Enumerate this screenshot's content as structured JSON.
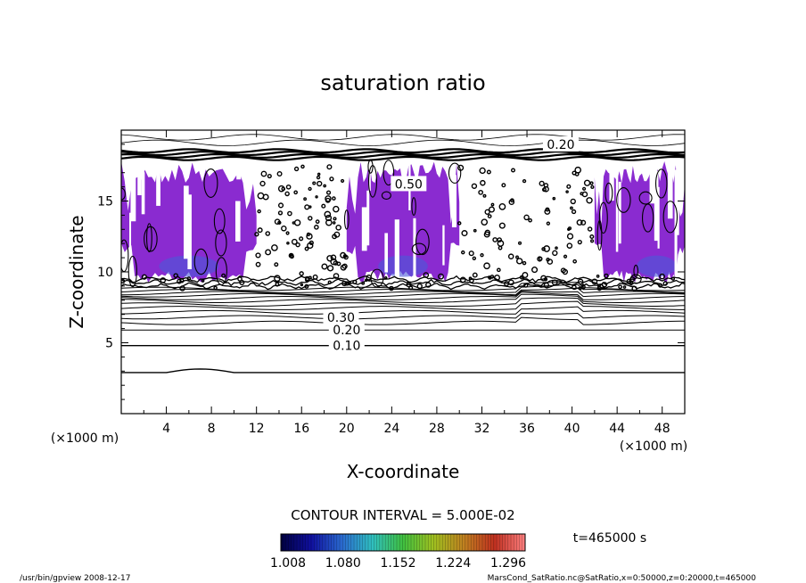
{
  "chart_data": {
    "type": "contour",
    "title": "saturation ratio",
    "xlabel": "X-coordinate",
    "ylabel": "Z-coordinate",
    "x_unit": "(×1000 m)",
    "y_unit": "(×1000 m)",
    "xlim": [
      0,
      50
    ],
    "ylim": [
      0,
      20
    ],
    "x_ticks": [
      4,
      8,
      12,
      16,
      20,
      24,
      28,
      32,
      36,
      40,
      44,
      48
    ],
    "y_ticks": [
      5,
      10,
      15
    ],
    "contour_interval_label": "CONTOUR INTERVAL = 5.000E-02",
    "time_label": "t=465000 s",
    "colorbar": {
      "ticks": [
        "1.008",
        "1.080",
        "1.152",
        "1.224",
        "1.296"
      ],
      "colors": [
        "#000040",
        "#1010a0",
        "#2a6ad0",
        "#30c0c0",
        "#40c040",
        "#a0c020",
        "#c08020",
        "#c03020",
        "#ff8080"
      ]
    },
    "fill_color": "#8a2bd0",
    "deep_fill_color": "#4a5ad8",
    "contour_line_labels": [
      {
        "text": "0.10",
        "x": 20.0,
        "z": 4.8
      },
      {
        "text": "0.20",
        "x": 20.0,
        "z": 5.9
      },
      {
        "text": "0.30",
        "x": 19.5,
        "z": 6.8
      },
      {
        "text": "0.20",
        "x": 39.0,
        "z": 19.0
      },
      {
        "text": "0.50",
        "x": 25.5,
        "z": 16.2
      }
    ],
    "saturated_regions_x": [
      [
        0,
        12
      ],
      [
        20,
        30
      ],
      [
        42,
        50
      ]
    ],
    "saturated_z_range": [
      9.2,
      17.8
    ]
  },
  "footer": {
    "left": "/usr/bin/gpview   2008-12-17",
    "right": "MarsCond_SatRatio.nc@SatRatio,x=0:50000,z=0:20000,t=465000"
  }
}
